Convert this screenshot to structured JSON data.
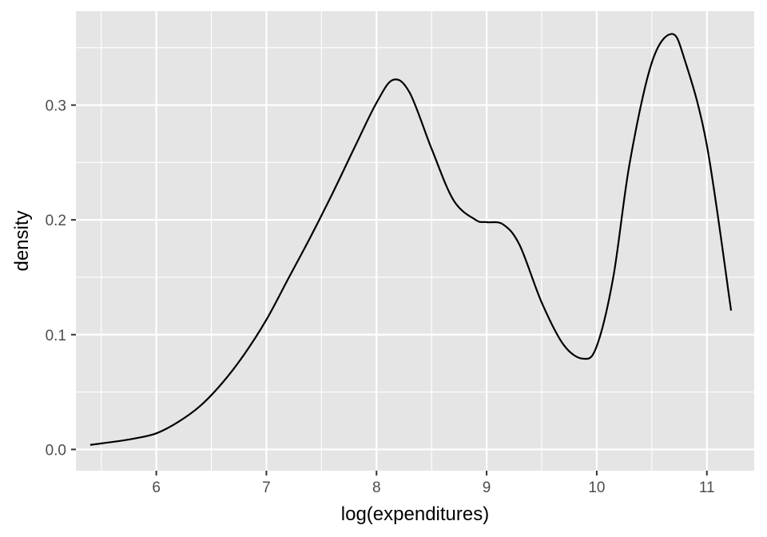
{
  "chart_data": {
    "type": "line",
    "xlabel": "log(expenditures)",
    "ylabel": "density",
    "xlim": [
      5.27,
      11.43
    ],
    "ylim": [
      -0.0185,
      0.3818
    ],
    "x_ticks": [
      6,
      7,
      8,
      9,
      10,
      11
    ],
    "x_tick_labels": [
      "6",
      "7",
      "8",
      "9",
      "10",
      "11"
    ],
    "y_ticks": [
      0.0,
      0.1,
      0.2,
      0.3
    ],
    "y_tick_labels": [
      "0.0",
      "0.1",
      "0.2",
      "0.3"
    ],
    "x_minor_ticks": [
      5.5,
      6.5,
      7.5,
      8.5,
      9.5,
      10.5
    ],
    "y_minor_ticks": [
      0.05,
      0.15,
      0.25,
      0.35
    ],
    "grid": true,
    "panel_background": "#e5e5e5",
    "grid_color": "#ffffff",
    "line_color": "#000000",
    "series": [
      {
        "x": [
          5.4,
          5.6,
          5.8,
          6.0,
          6.2,
          6.4,
          6.6,
          6.8,
          7.0,
          7.2,
          7.4,
          7.6,
          7.8,
          8.0,
          8.15,
          8.3,
          8.5,
          8.7,
          8.9,
          9.0,
          9.15,
          9.3,
          9.5,
          9.7,
          9.88,
          10.0,
          10.15,
          10.3,
          10.5,
          10.68,
          10.8,
          11.0,
          11.22
        ],
        "y": [
          0.004,
          0.0065,
          0.0095,
          0.014,
          0.024,
          0.038,
          0.058,
          0.083,
          0.113,
          0.149,
          0.185,
          0.223,
          0.263,
          0.302,
          0.322,
          0.311,
          0.262,
          0.217,
          0.2,
          0.198,
          0.196,
          0.178,
          0.128,
          0.091,
          0.079,
          0.09,
          0.15,
          0.25,
          0.337,
          0.362,
          0.339,
          0.265,
          0.121
        ]
      }
    ]
  }
}
